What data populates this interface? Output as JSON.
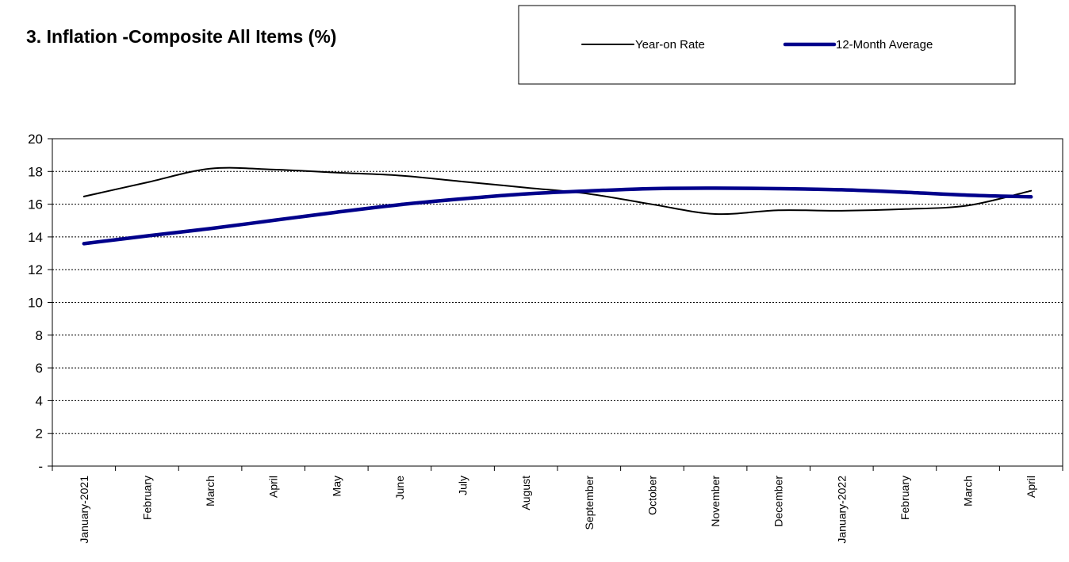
{
  "chart_data": {
    "type": "line",
    "title": "3. Inflation -Composite All Items (%)",
    "xlabel": "",
    "ylabel": "",
    "ylim": [
      0,
      20
    ],
    "y_ticks": [
      0,
      2,
      4,
      6,
      8,
      10,
      12,
      14,
      16,
      18,
      20
    ],
    "y_tick_labels": [
      "-",
      "2",
      "4",
      "6",
      "8",
      "10",
      "12",
      "14",
      "16",
      "18",
      "20"
    ],
    "grid": "horizontal dashed",
    "legend_position": "top-right",
    "categories": [
      "January-2021",
      "February",
      "March",
      "April",
      "May",
      "June",
      "July",
      "August",
      "September",
      "October",
      "November",
      "December",
      "January-2022",
      "February",
      "March",
      "April"
    ],
    "series": [
      {
        "name": "Year-on Rate",
        "color": "#000000",
        "values": [
          16.47,
          17.33,
          18.17,
          18.12,
          17.93,
          17.75,
          17.38,
          17.01,
          16.63,
          15.99,
          15.4,
          15.63,
          15.6,
          15.7,
          15.92,
          16.82
        ]
      },
      {
        "name": "12-Month Average",
        "color": "#00008B",
        "values": [
          13.59,
          14.06,
          14.51,
          15.01,
          15.51,
          15.97,
          16.33,
          16.63,
          16.81,
          16.95,
          16.98,
          16.95,
          16.88,
          16.73,
          16.55,
          16.45
        ]
      }
    ]
  }
}
